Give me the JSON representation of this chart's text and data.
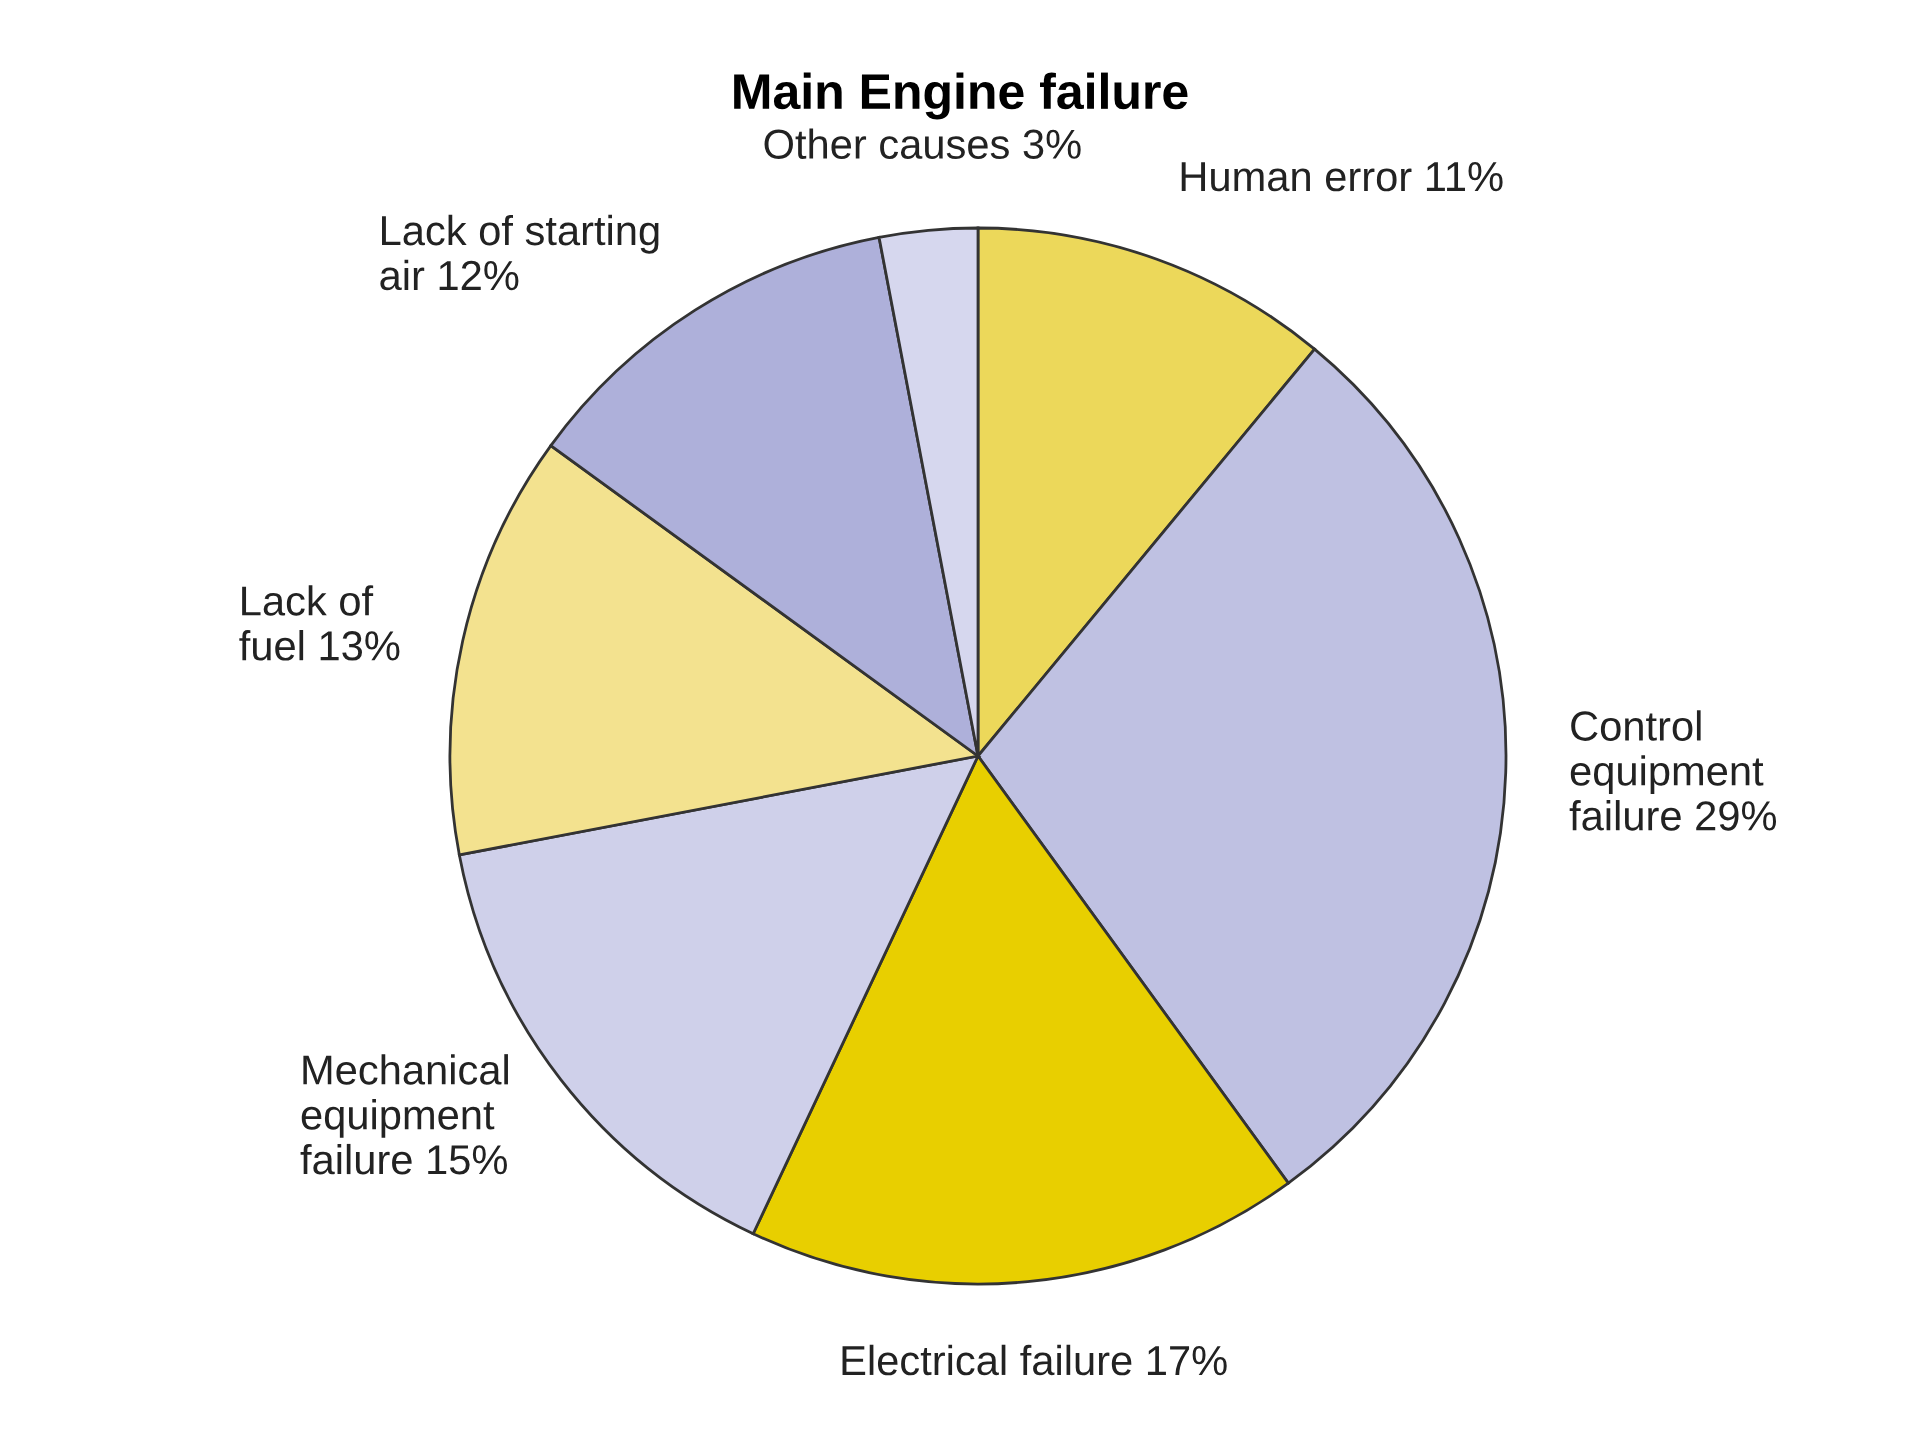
{
  "chart_data": {
    "type": "pie",
    "title": "Main Engine failure",
    "categories": [
      "Human error 11%",
      "Control\nequipment\nfailure 29%",
      "Electrical failure 17%",
      "Mechanical\nequipment\nfailure 15%",
      "Lack of\nfuel 13%",
      "Lack of starting\nair 12%",
      "Other causes 3%"
    ],
    "values": [
      11,
      29,
      17,
      15,
      13,
      12,
      3
    ],
    "colors": [
      "#ecd85a",
      "#bfc1e2",
      "#e8cf00",
      "#cfd0ea",
      "#f3e28f",
      "#aeb0da",
      "#d6d7ee"
    ],
    "legend": false
  }
}
